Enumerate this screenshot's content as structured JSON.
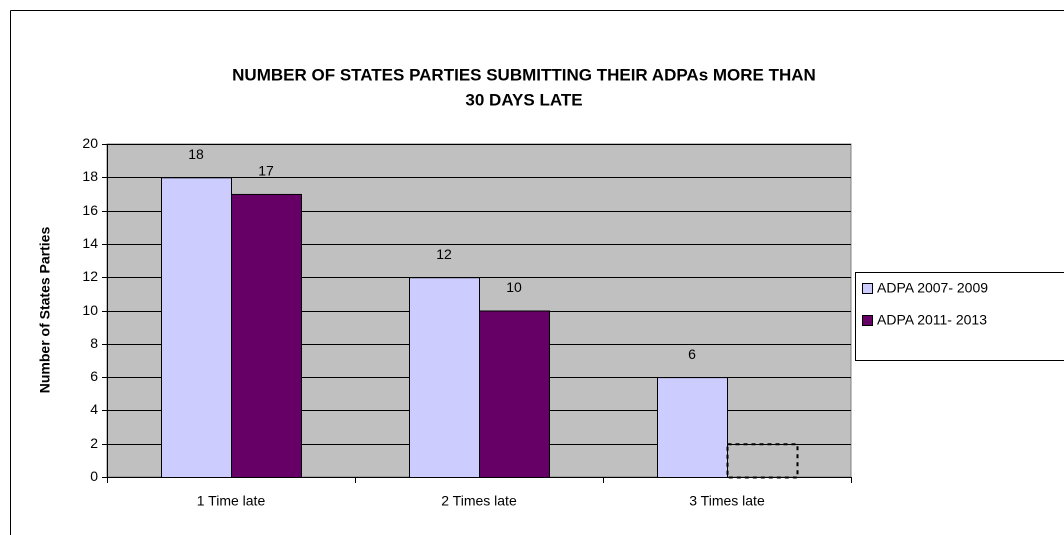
{
  "chart_data": {
    "type": "bar",
    "title": [
      "NUMBER OF STATES PARTIES SUBMITTING THEIR ADPAs MORE THAN",
      "30 DAYS LATE"
    ],
    "y_label": "Number of States Parties",
    "categories": [
      "1 Time late",
      "2 Times late",
      "3 Times late"
    ],
    "series": [
      {
        "name": "ADPA 2007- 2009",
        "color": "#ccccff",
        "values": [
          18,
          12,
          6
        ],
        "border_styles": [
          "solid",
          "solid",
          "solid"
        ],
        "labels_shown": [
          true,
          true,
          true
        ]
      },
      {
        "name": "ADPA 2011- 2013",
        "color": "#660066",
        "values": [
          17,
          10,
          2
        ],
        "border_styles": [
          "solid",
          "solid",
          "dashed"
        ],
        "labels_shown": [
          true,
          true,
          false
        ]
      }
    ],
    "ylim": [
      0,
      20
    ],
    "yticks": [
      0,
      2,
      4,
      6,
      8,
      10,
      12,
      14,
      16,
      18,
      20
    ],
    "grid": true,
    "plot_background": "#c0c0c0",
    "legend": "right"
  }
}
